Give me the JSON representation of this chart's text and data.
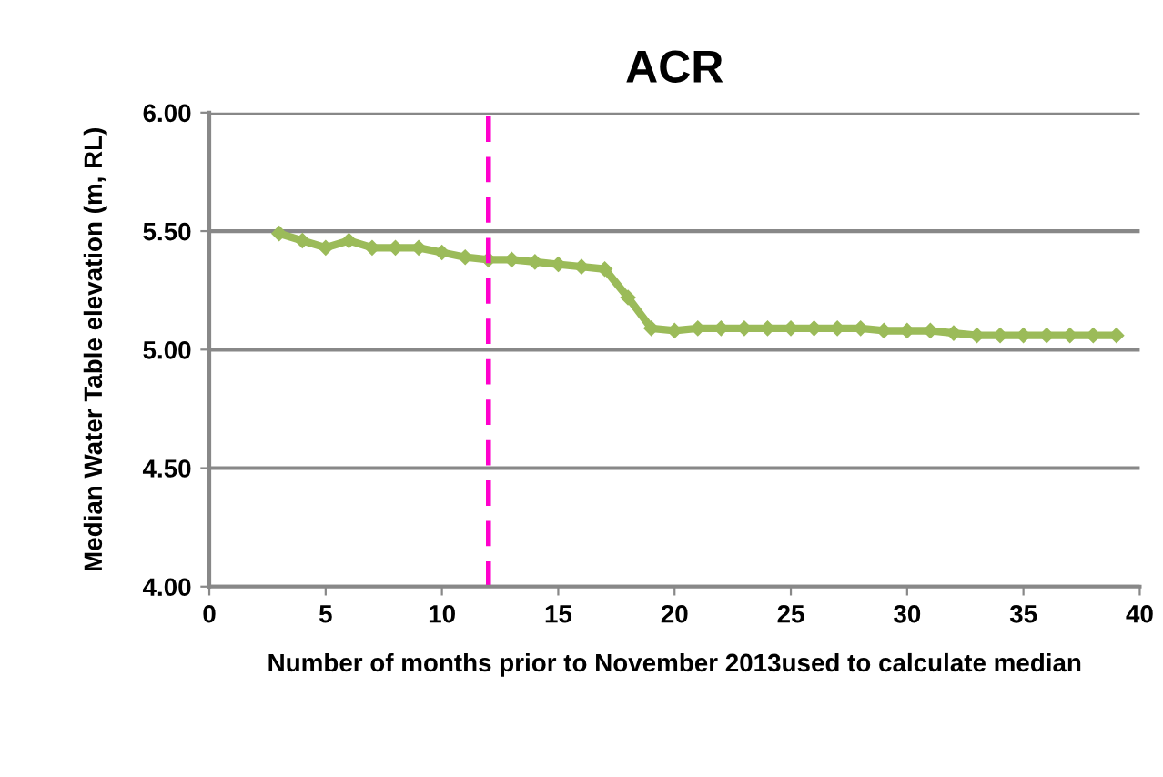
{
  "chart_data": {
    "type": "line",
    "title": "ACR",
    "xlabel": "Number of months prior to November 2013used to calculate median",
    "ylabel": "Median Water Table elevation (m, RL)",
    "x": [
      3,
      4,
      5,
      6,
      7,
      8,
      9,
      10,
      11,
      12,
      13,
      14,
      15,
      16,
      17,
      18,
      19,
      20,
      21,
      22,
      23,
      24,
      25,
      26,
      27,
      28,
      29,
      30,
      31,
      32,
      33,
      34,
      35,
      36,
      37,
      38,
      39
    ],
    "series": [
      {
        "color": "#9bbb59",
        "values": [
          5.49,
          5.46,
          5.43,
          5.46,
          5.43,
          5.43,
          5.43,
          5.41,
          5.39,
          5.38,
          5.38,
          5.37,
          5.36,
          5.35,
          5.34,
          5.22,
          5.09,
          5.08,
          5.09,
          5.09,
          5.09,
          5.09,
          5.09,
          5.09,
          5.09,
          5.09,
          5.08,
          5.08,
          5.08,
          5.07,
          5.06,
          5.06,
          5.06,
          5.06,
          5.06,
          5.06,
          5.06
        ]
      }
    ],
    "xlim": [
      0,
      40
    ],
    "xticks": [
      0,
      5,
      10,
      15,
      20,
      25,
      30,
      35,
      40
    ],
    "ylim": [
      4.0,
      6.0
    ],
    "yticks": [
      {
        "value": 4.0,
        "label": "4.00"
      },
      {
        "value": 4.5,
        "label": "4.50"
      },
      {
        "value": 5.0,
        "label": "5.00"
      },
      {
        "value": 5.5,
        "label": "5.50"
      },
      {
        "value": 6.0,
        "label": "6.00"
      }
    ],
    "grid": "y",
    "marker": "diamond",
    "line_style": "solid",
    "ref_lines": [
      {
        "axis": "x",
        "value": 12,
        "color": "#ff00cc",
        "line_style": "dashed"
      }
    ]
  }
}
